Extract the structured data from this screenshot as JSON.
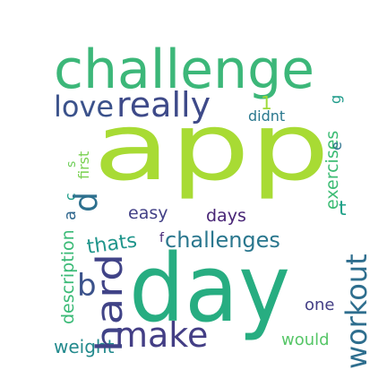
{
  "cloud": {
    "background": "#ffffff",
    "words": [
      {
        "text": "challenge",
        "color": "#3cb779"
      },
      {
        "text": "app",
        "color": "#a8db34"
      },
      {
        "text": "day",
        "color": "#27ad81"
      },
      {
        "text": "workout",
        "color": "#2e6e8e"
      },
      {
        "text": "hard",
        "color": "#404387"
      },
      {
        "text": "love",
        "color": "#3b528b"
      },
      {
        "text": "really",
        "color": "#3e4a89"
      },
      {
        "text": "description",
        "color": "#3aba76"
      },
      {
        "text": "make",
        "color": "#433e85"
      },
      {
        "text": "challenges",
        "color": "#2a778e"
      },
      {
        "text": "easy",
        "color": "#424086"
      },
      {
        "text": "days",
        "color": "#482576"
      },
      {
        "text": "thats",
        "color": "#1f958b"
      },
      {
        "text": "exercises",
        "color": "#3dbc74"
      },
      {
        "text": "first",
        "color": "#7ad151"
      },
      {
        "text": "weight",
        "color": "#238a8d"
      },
      {
        "text": "would",
        "color": "#56c667"
      },
      {
        "text": "one",
        "color": "#433e85"
      },
      {
        "text": "didnt",
        "color": "#2a788e"
      },
      {
        "text": "1",
        "color": "#9fda3a"
      },
      {
        "text": "a",
        "color": "#31688e"
      },
      {
        "text": "c",
        "color": "#1f9e89"
      },
      {
        "text": "s",
        "color": "#6ece58"
      },
      {
        "text": "d",
        "color": "#2d708e"
      },
      {
        "text": "b",
        "color": "#3b528b"
      },
      {
        "text": "f",
        "color": "#482878"
      },
      {
        "text": "g",
        "color": "#1e9b8a"
      },
      {
        "text": "e",
        "color": "#2c728e"
      },
      {
        "text": "t",
        "color": "#1fa188"
      }
    ]
  }
}
